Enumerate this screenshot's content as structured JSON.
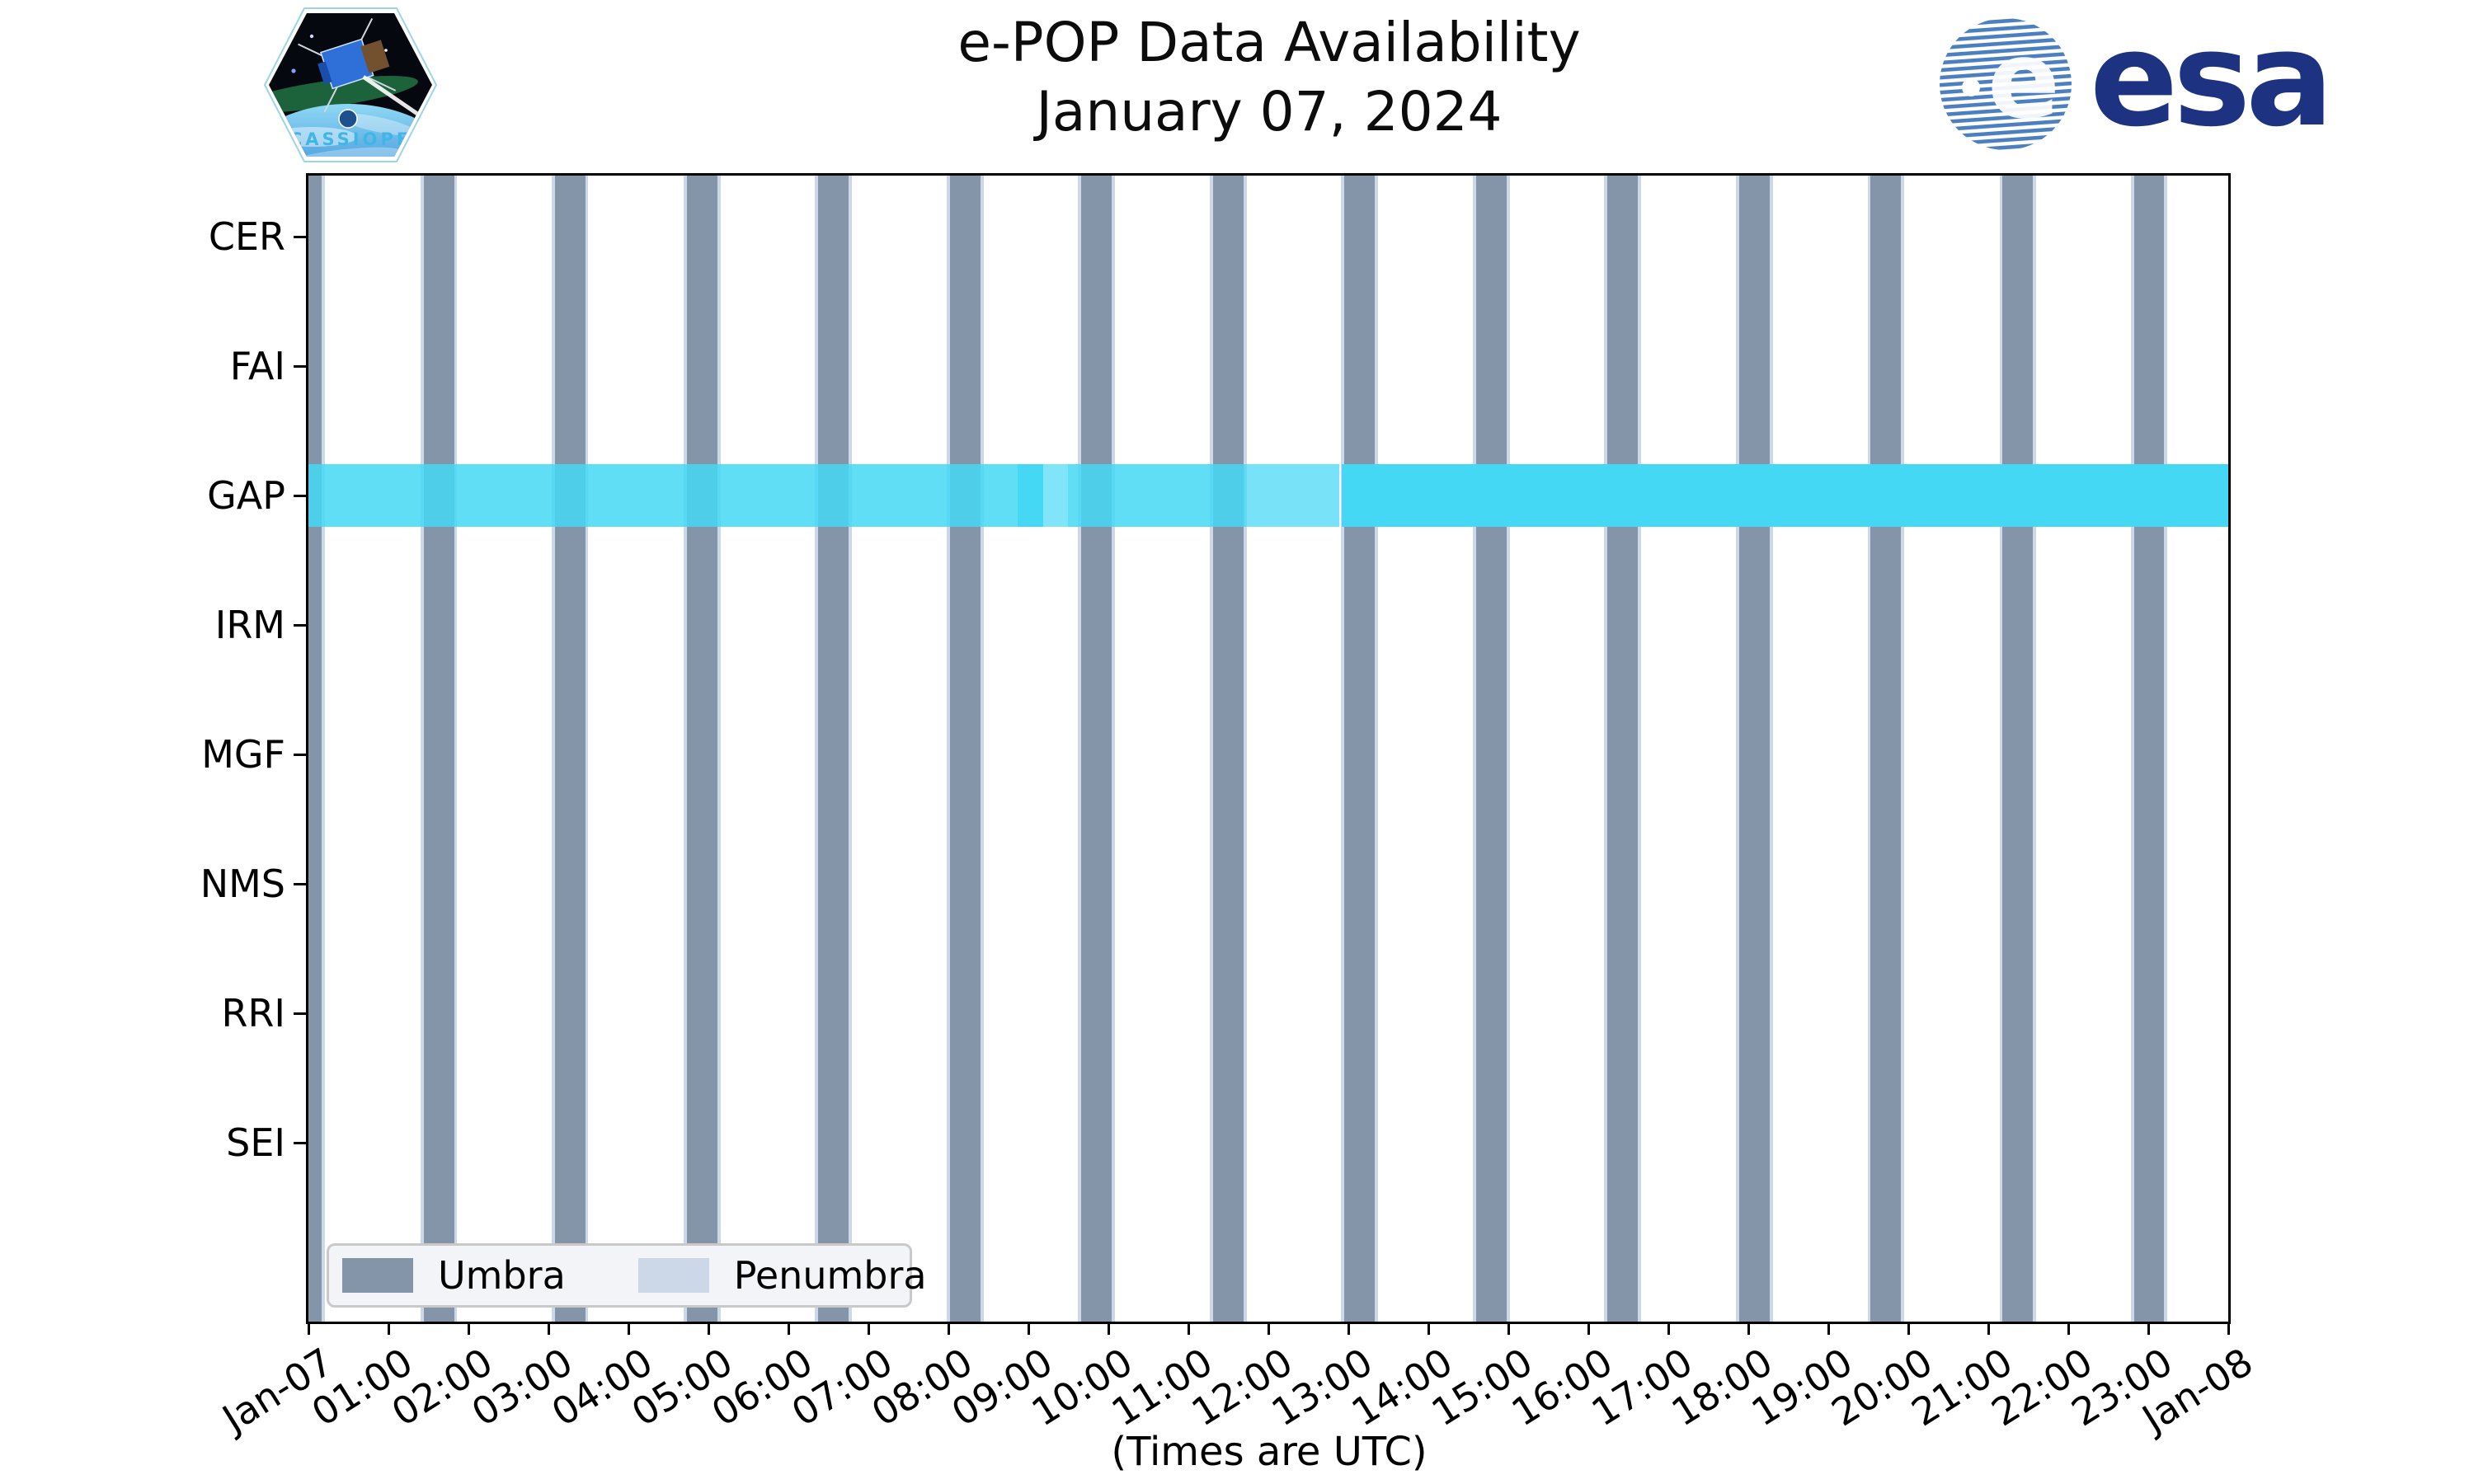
{
  "header": {
    "title_line1": "e-POP Data Availability",
    "title_line2": "January 07, 2024",
    "cassiope_patch_label": "CASSIOPE",
    "esa_wordmark": "esa"
  },
  "xaxis_title": "(Times are UTC)",
  "chart_data": {
    "type": "timeline-availability",
    "title": "e-POP Data Availability",
    "subtitle": "January 07, 2024",
    "xlabel": "(Times are UTC)",
    "x_range_hours": [
      0,
      24
    ],
    "x_tick_labels": [
      "Jan-07",
      "01:00",
      "02:00",
      "03:00",
      "04:00",
      "05:00",
      "06:00",
      "07:00",
      "08:00",
      "09:00",
      "10:00",
      "11:00",
      "12:00",
      "13:00",
      "14:00",
      "15:00",
      "16:00",
      "17:00",
      "18:00",
      "19:00",
      "20:00",
      "21:00",
      "22:00",
      "23:00",
      "Jan-08"
    ],
    "instruments": [
      "CER",
      "FAI",
      "GAP",
      "IRM",
      "MGF",
      "NMS",
      "RRI",
      "SEI"
    ],
    "availability_notes": "Only GAP has data availability on this day; band spans full 24 h with varying intensity",
    "gap_band_segments_hours": [
      {
        "start": 0.0,
        "end": 8.87,
        "alpha": 0.85
      },
      {
        "start": 8.87,
        "end": 9.19,
        "alpha": 1.0
      },
      {
        "start": 9.19,
        "end": 9.49,
        "alpha": 0.68
      },
      {
        "start": 9.49,
        "end": 11.71,
        "alpha": 0.85
      },
      {
        "start": 11.71,
        "end": 12.89,
        "alpha": 0.72
      },
      {
        "start": 12.92,
        "end": 24.0,
        "alpha": 1.0
      }
    ],
    "umbra_intervals_hours": [
      [
        0.0,
        0.17
      ],
      [
        1.44,
        1.82
      ],
      [
        3.08,
        3.46
      ],
      [
        4.73,
        5.11
      ],
      [
        6.37,
        6.75
      ],
      [
        8.02,
        8.4
      ],
      [
        9.66,
        10.04
      ],
      [
        11.31,
        11.69
      ],
      [
        12.95,
        13.33
      ],
      [
        14.6,
        14.98
      ],
      [
        16.24,
        16.62
      ],
      [
        17.89,
        18.27
      ],
      [
        19.53,
        19.91
      ],
      [
        21.18,
        21.56
      ],
      [
        22.82,
        23.2
      ]
    ],
    "penumbra_edge_hours": 0.04,
    "legend": [
      {
        "label": "Umbra",
        "color": "#8595a9"
      },
      {
        "label": "Penumbra",
        "color": "#ccd8e7"
      }
    ],
    "colors": {
      "umbra": "#8595a9",
      "penumbra": "#ccd8e7",
      "gap_band_rgb": "68,216,245",
      "esa_blue": "#1e3282",
      "cassiope_text": "#41b6e6"
    },
    "legend_position": "lower left",
    "grid": false
  }
}
